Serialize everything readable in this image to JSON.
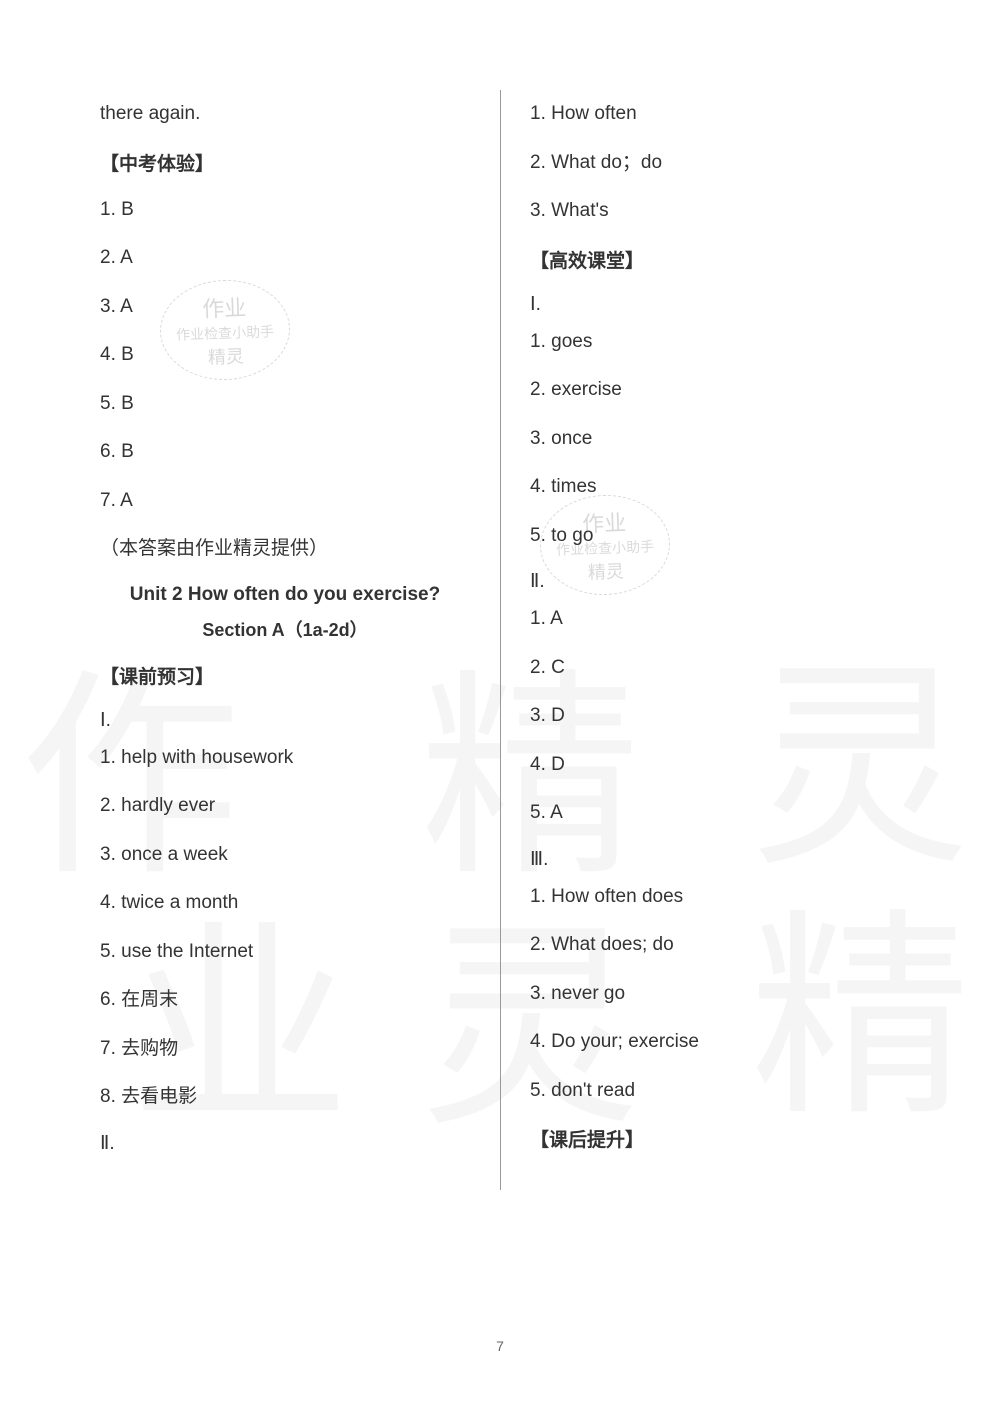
{
  "page_number": "7",
  "left": {
    "topline": "there again.",
    "heading_zhongkao": "【中考体验】",
    "zhongkao": [
      "1.  B",
      "2.  A",
      "3.  A",
      "4.  B",
      "5.  B",
      "6.  B",
      "7.  A"
    ],
    "credit": "（本答案由作业精灵提供）",
    "unit_title": "Unit 2 How often do you exercise?",
    "section_title": "Section A（1a-2d）",
    "heading_preview": "【课前预习】",
    "roman1": "Ⅰ.",
    "preview_I": [
      "1. help with housework",
      "2. hardly ever",
      "3. once a week",
      "4. twice a month",
      "5. use the Internet",
      "6.  在周末",
      "7.  去购物",
      "8.  去看电影"
    ],
    "roman2": "Ⅱ."
  },
  "right": {
    "pre_II": [
      "1. How often",
      "2. What do；do",
      "3. What's"
    ],
    "heading_class": "【高效课堂】",
    "roman1": "Ⅰ.",
    "class_I": [
      "1. goes",
      "2. exercise",
      "3. once",
      "4. times",
      "5. to go"
    ],
    "roman2": "Ⅱ.",
    "class_II": [
      "1.  A",
      "2.  C",
      "3.  D",
      "4.  D",
      "5.  A"
    ],
    "roman3": "Ⅲ.",
    "class_III": [
      "1. How often does",
      "2. What does; do",
      "3. never go",
      "4. Do your; exercise",
      "5. don't read"
    ],
    "heading_after": "【课后提升】"
  },
  "watermark": {
    "char1": "作",
    "char2": "业",
    "char3": "精",
    "char4": "灵",
    "stamp_l1": "作业",
    "stamp_l2": "作业检查小助手",
    "stamp_l3": "精灵"
  }
}
